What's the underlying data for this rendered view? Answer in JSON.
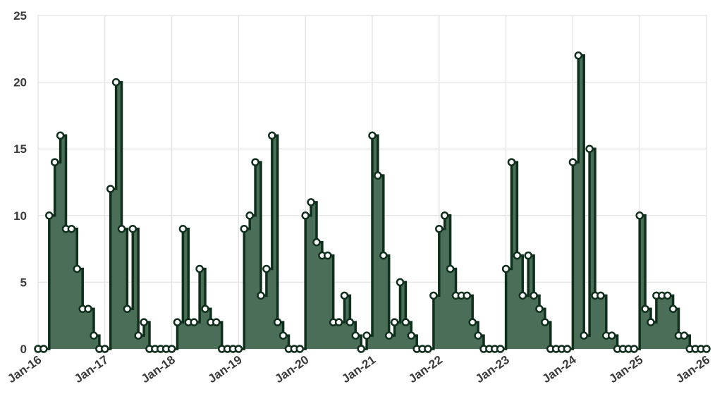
{
  "chart_data": {
    "type": "area",
    "step": "step-after",
    "x_tick_labels": [
      "Jan-16",
      "Jan-17",
      "Jan-18",
      "Jan-19",
      "Jan-20",
      "Jan-21",
      "Jan-22",
      "Jan-23",
      "Jan-24",
      "Jan-25",
      "Jan-26"
    ],
    "y_tick_labels": [
      "0",
      "5",
      "10",
      "15",
      "20",
      "25"
    ],
    "xlim": [
      "2016-01",
      "2026-01"
    ],
    "ylim": [
      0,
      25
    ],
    "grid": true,
    "series": [
      {
        "months": [
          "2016-01",
          "2016-02",
          "2016-03",
          "2016-04",
          "2016-05",
          "2016-06",
          "2016-07",
          "2016-08",
          "2016-09",
          "2016-10",
          "2016-11",
          "2016-12",
          "2017-01",
          "2017-02",
          "2017-03",
          "2017-04",
          "2017-05",
          "2017-06",
          "2017-07",
          "2017-08",
          "2017-09",
          "2017-10",
          "2017-11",
          "2017-12",
          "2018-01",
          "2018-02",
          "2018-03",
          "2018-04",
          "2018-05",
          "2018-06",
          "2018-07",
          "2018-08",
          "2018-09",
          "2018-10",
          "2018-11",
          "2018-12",
          "2019-01",
          "2019-02",
          "2019-03",
          "2019-04",
          "2019-05",
          "2019-06",
          "2019-07",
          "2019-08",
          "2019-09",
          "2019-10",
          "2019-11",
          "2019-12",
          "2020-01",
          "2020-02",
          "2020-03",
          "2020-04",
          "2020-05",
          "2020-06",
          "2020-07",
          "2020-08",
          "2020-09",
          "2020-10",
          "2020-11",
          "2020-12",
          "2021-01",
          "2021-02",
          "2021-03",
          "2021-04",
          "2021-05",
          "2021-06",
          "2021-07",
          "2021-08",
          "2021-09",
          "2021-10",
          "2021-11",
          "2021-12",
          "2022-01",
          "2022-02",
          "2022-03",
          "2022-04",
          "2022-05",
          "2022-06",
          "2022-07",
          "2022-08",
          "2022-09",
          "2022-10",
          "2022-11",
          "2022-12",
          "2023-01",
          "2023-02",
          "2023-03",
          "2023-04",
          "2023-05",
          "2023-06",
          "2023-07",
          "2023-08",
          "2023-09",
          "2023-10",
          "2023-11",
          "2023-12",
          "2024-01",
          "2024-02",
          "2024-03",
          "2024-04",
          "2024-05",
          "2024-06",
          "2024-07",
          "2024-08",
          "2024-09",
          "2024-10",
          "2024-11",
          "2024-12",
          "2025-01",
          "2025-02",
          "2025-03",
          "2025-04",
          "2025-05",
          "2025-06",
          "2025-07",
          "2025-08",
          "2025-09",
          "2025-10",
          "2025-11",
          "2025-12",
          "2026-01"
        ],
        "values": [
          0,
          0,
          10,
          14,
          16,
          9,
          9,
          6,
          3,
          3,
          1,
          0,
          0,
          12,
          20,
          9,
          3,
          9,
          1,
          2,
          0,
          0,
          0,
          0,
          0,
          2,
          9,
          2,
          2,
          6,
          3,
          2,
          2,
          0,
          0,
          0,
          0,
          9,
          10,
          14,
          4,
          6,
          16,
          2,
          1,
          0,
          0,
          0,
          10,
          11,
          8,
          7,
          7,
          2,
          2,
          4,
          2,
          1,
          0,
          1,
          16,
          13,
          7,
          1,
          2,
          5,
          2,
          1,
          0,
          0,
          0,
          4,
          9,
          10,
          6,
          4,
          4,
          4,
          2,
          1,
          0,
          0,
          0,
          0,
          6,
          14,
          7,
          4,
          7,
          4,
          3,
          2,
          0,
          0,
          0,
          0,
          14,
          22,
          1,
          15,
          4,
          4,
          1,
          1,
          0,
          0,
          0,
          0,
          10,
          3,
          2,
          4,
          4,
          4,
          3,
          1,
          1,
          0,
          0,
          0,
          0
        ],
        "colors": {
          "fill": "#4a6e58",
          "line": "#0f2e1c",
          "marker": "#ffffff"
        }
      }
    ]
  }
}
